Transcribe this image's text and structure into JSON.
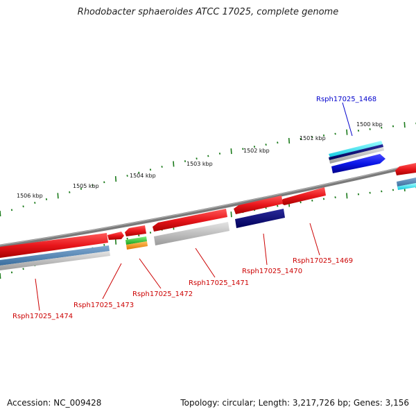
{
  "title": "Rhodobacter sphaeroides ATCC 17025, complete genome",
  "footer": {
    "accession": "Accession: NC_009428",
    "summary": "Topology: circular; Length: 3,217,726 bp; Genes: 3,156"
  },
  "colors": {
    "backbone": "#7f7f7f",
    "tick": "#1a7a1a",
    "cds_red": "#e8161b",
    "label_red": "#cc0000",
    "label_blue": "#0000cc"
  },
  "kbp_labels": [
    "1506 kbp",
    "1505 kbp",
    "1504 kbp",
    "1503 kbp",
    "1502 kbp",
    "1501 kbp",
    "1500 kbp"
  ],
  "gene_labels": [
    {
      "text": "Rsph17025_1468",
      "color": "blue"
    },
    {
      "text": "Rsph17025_1469",
      "color": "red"
    },
    {
      "text": "Rsph17025_1470",
      "color": "red"
    },
    {
      "text": "Rsph17025_1471",
      "color": "red"
    },
    {
      "text": "Rsph17025_1472",
      "color": "red"
    },
    {
      "text": "Rsph17025_1473",
      "color": "red"
    },
    {
      "text": "Rsph17025_1474",
      "color": "red"
    }
  ]
}
